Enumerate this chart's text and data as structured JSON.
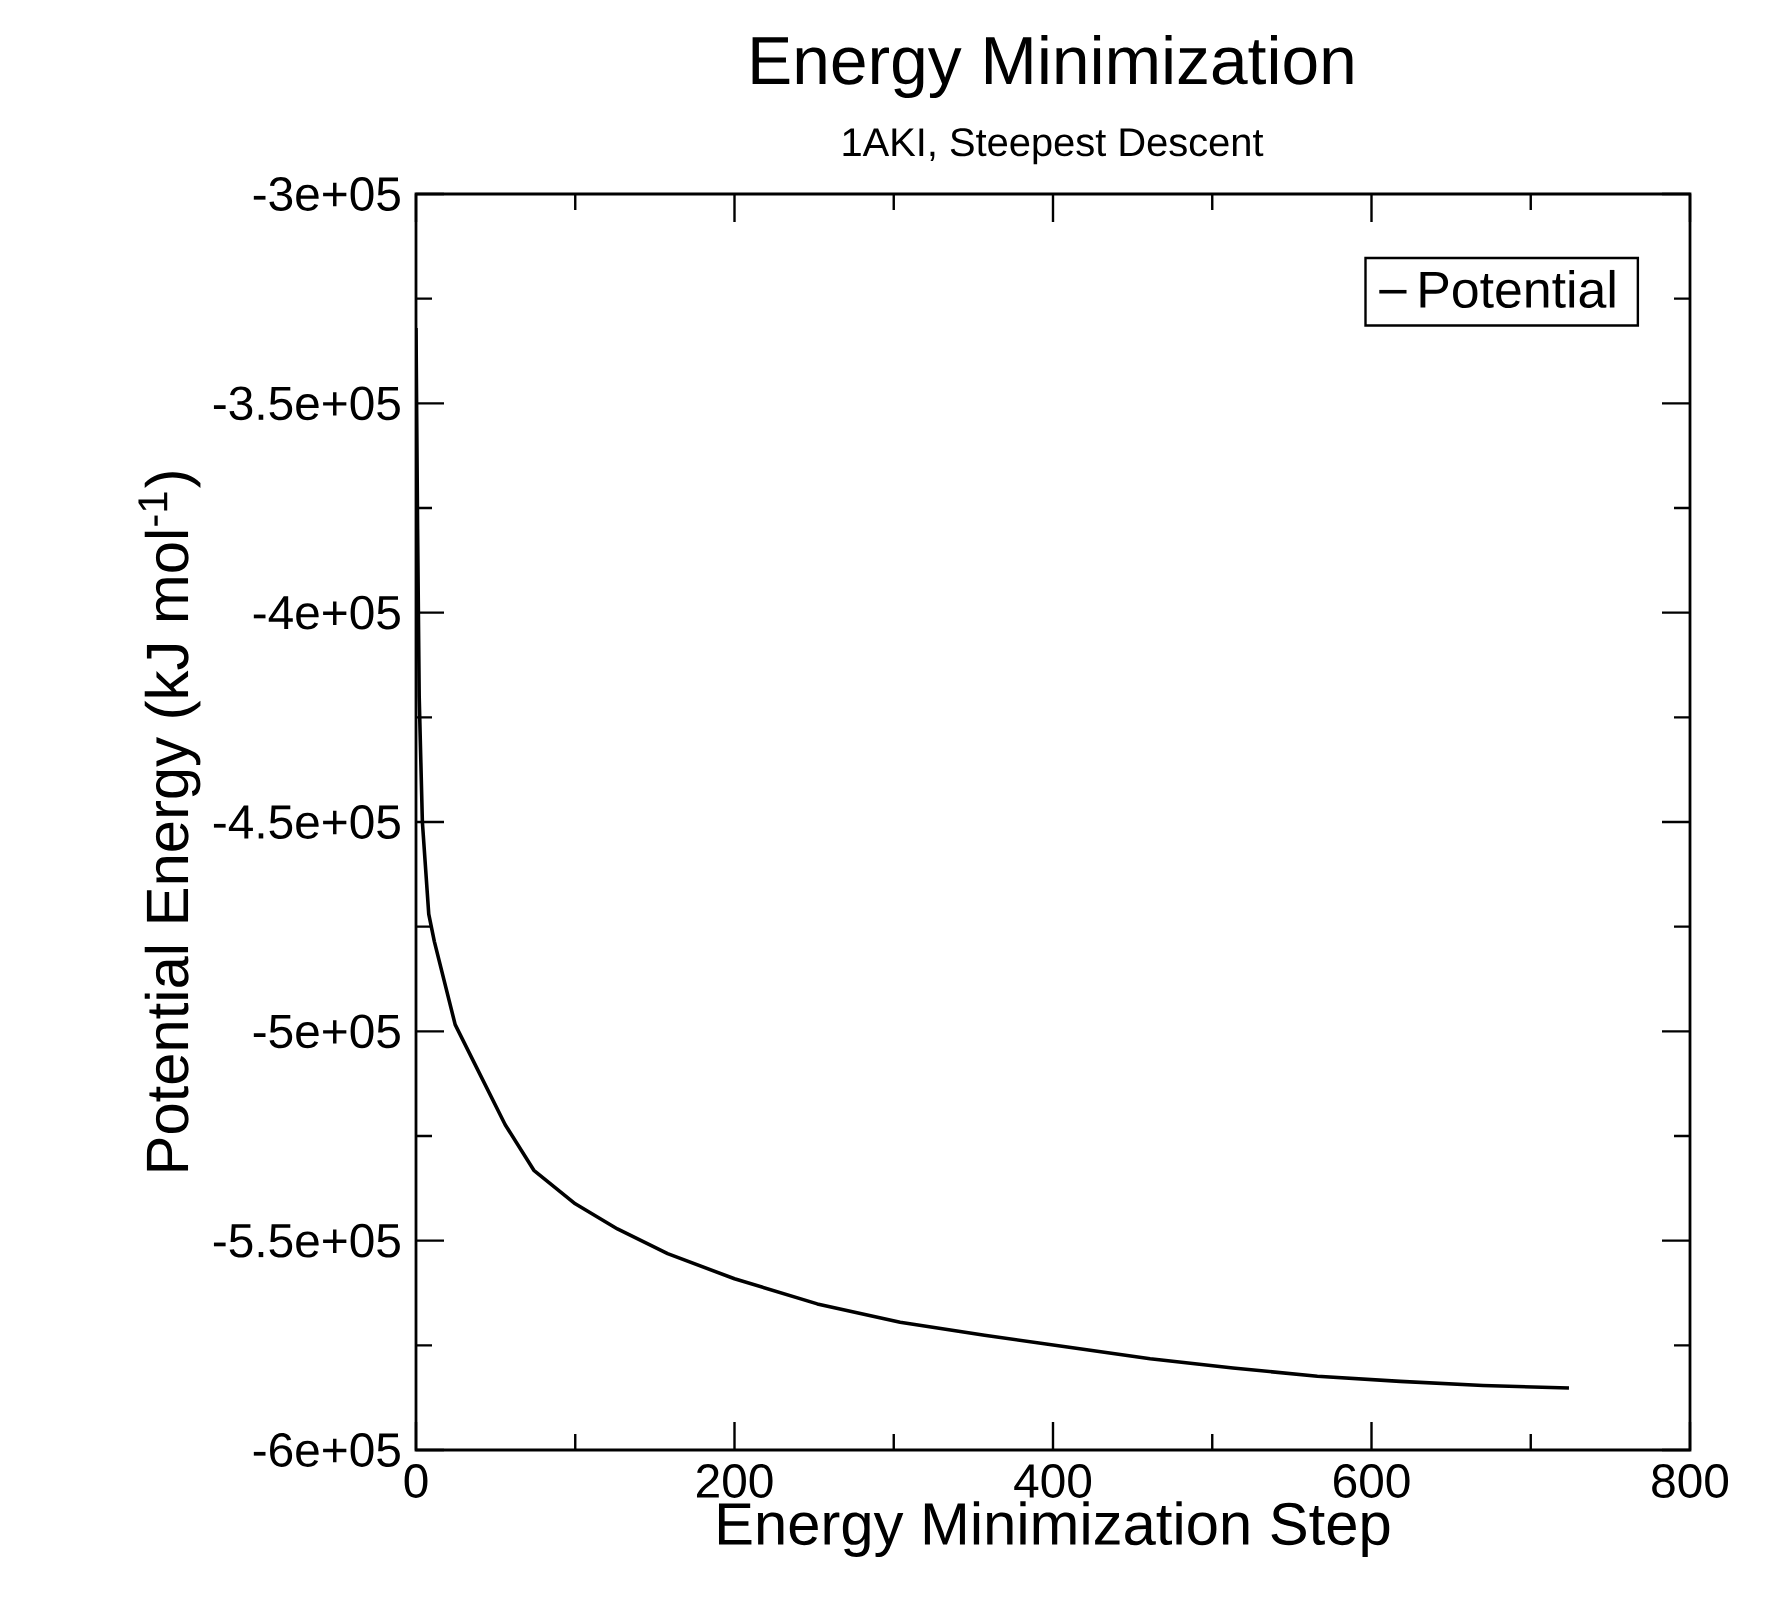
{
  "chart_data": {
    "type": "line",
    "title": "Energy Minimization",
    "subtitle": "1AKI, Steepest Descent",
    "xlabel": "Energy Minimization Step",
    "ylabel": "Potential Energy (kJ mol$^{-1}$)",
    "series": [
      {
        "name": "Potential",
        "color": "#000000",
        "x": [
          0,
          1,
          2,
          4,
          8,
          11.5,
          24.6,
          37.6,
          56,
          74,
          100,
          126.5,
          158,
          200,
          252,
          304,
          357,
          409,
          461,
          513,
          566,
          618,
          670,
          724
        ],
        "values": [
          -332000,
          -380000,
          -420000,
          -450000,
          -472000,
          -478500,
          -498400,
          -508300,
          -522300,
          -533200,
          -541200,
          -547200,
          -553100,
          -559100,
          -565100,
          -569500,
          -572600,
          -575400,
          -578200,
          -580400,
          -582400,
          -583600,
          -584600,
          -585200
        ]
      }
    ],
    "xlim": [
      0,
      800
    ],
    "xticks": [
      0,
      200,
      400,
      600,
      800
    ],
    "ylim": [
      -600000,
      -300000
    ],
    "yticks": [
      {
        "value": -600000,
        "label": "-6e+05"
      },
      {
        "value": -550000,
        "label": "-5.5e+05"
      },
      {
        "value": -500000,
        "label": "-5e+05"
      },
      {
        "value": -450000,
        "label": "-4.5e+05"
      },
      {
        "value": -400000,
        "label": "-4e+05"
      },
      {
        "value": -350000,
        "label": "-3.5e+05"
      },
      {
        "value": -300000,
        "label": "-3e+05"
      }
    ],
    "legend": "top right",
    "line_style": "solid",
    "marker": "none",
    "grid": false
  }
}
